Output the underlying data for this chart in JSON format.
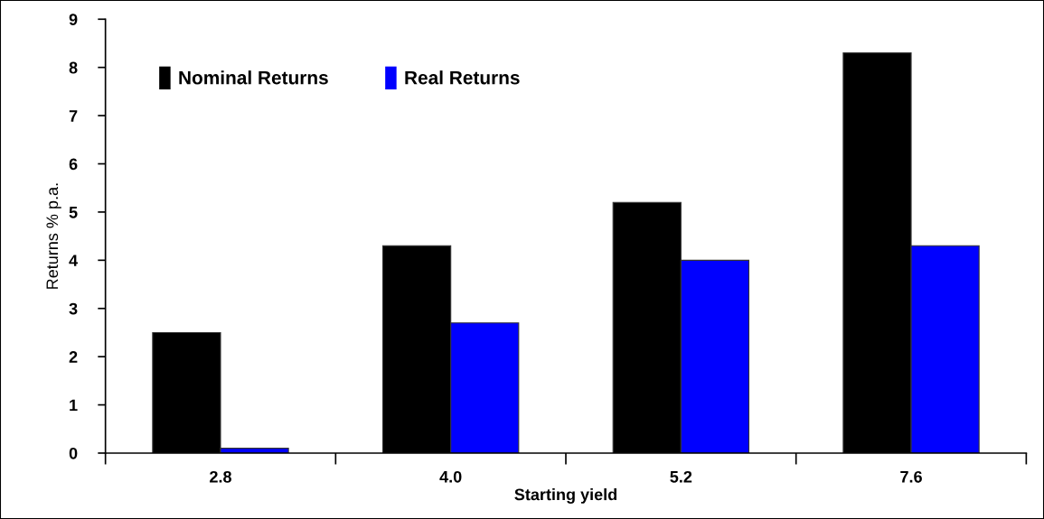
{
  "chart_data": {
    "type": "bar",
    "xlabel": "Starting yield",
    "ylabel": "Returns % p.a.",
    "categories": [
      "2.8",
      "4.0",
      "5.2",
      "7.6"
    ],
    "series": [
      {
        "name": "Nominal Returns",
        "color": "#000000",
        "values": [
          2.5,
          4.3,
          5.2,
          8.3
        ]
      },
      {
        "name": "Real Returns",
        "color": "#0000ff",
        "values": [
          0.1,
          2.7,
          4.0,
          4.3
        ]
      }
    ],
    "ylim": [
      0,
      9
    ],
    "yticks": [
      0,
      1,
      2,
      3,
      4,
      5,
      6,
      7,
      8,
      9
    ],
    "grid": false,
    "legend": "top left"
  }
}
